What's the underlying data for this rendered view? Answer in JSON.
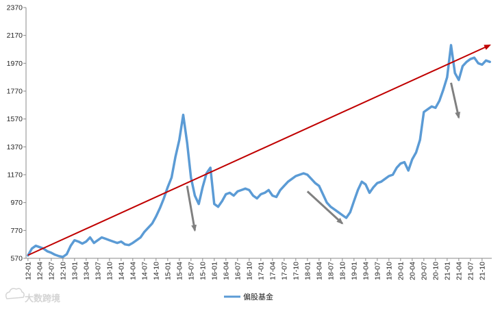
{
  "chart_data": {
    "type": "line",
    "title": "",
    "xlabel": "",
    "ylabel": "",
    "ylim": [
      570,
      2370
    ],
    "y_ticks": [
      570,
      770,
      970,
      1170,
      1370,
      1570,
      1770,
      1970,
      2170,
      2370
    ],
    "x_tick_labels": [
      "12-01",
      "12-04",
      "12-07",
      "12-10",
      "13-01",
      "13-04",
      "13-07",
      "13-10",
      "14-01",
      "14-04",
      "14-07",
      "14-10",
      "15-01",
      "15-04",
      "15-07",
      "15-10",
      "16-01",
      "16-04",
      "16-07",
      "16-10",
      "17-01",
      "17-04",
      "17-07",
      "17-10",
      "18-01",
      "18-04",
      "18-07",
      "18-10",
      "19-01",
      "19-04",
      "19-07",
      "19-10",
      "20-01",
      "20-04",
      "20-07",
      "20-10",
      "21-01",
      "21-04",
      "21-07",
      "21-10"
    ],
    "grid": false,
    "legend_position": "bottom",
    "series": [
      {
        "name": "偏股基金",
        "color": "#5B9BD5",
        "x": [
          "12-01",
          "12-02",
          "12-03",
          "12-04",
          "12-05",
          "12-06",
          "12-07",
          "12-08",
          "12-09",
          "12-10",
          "12-11",
          "12-12",
          "13-01",
          "13-02",
          "13-03",
          "13-04",
          "13-05",
          "13-06",
          "13-07",
          "13-08",
          "13-09",
          "13-10",
          "13-11",
          "13-12",
          "14-01",
          "14-02",
          "14-03",
          "14-04",
          "14-05",
          "14-06",
          "14-07",
          "14-08",
          "14-09",
          "14-10",
          "14-11",
          "14-12",
          "15-01",
          "15-02",
          "15-03",
          "15-04",
          "15-05",
          "15-06",
          "15-07",
          "15-08",
          "15-09",
          "15-10",
          "15-11",
          "15-12",
          "16-01",
          "16-02",
          "16-03",
          "16-04",
          "16-05",
          "16-06",
          "16-07",
          "16-08",
          "16-09",
          "16-10",
          "16-11",
          "16-12",
          "17-01",
          "17-02",
          "17-03",
          "17-04",
          "17-05",
          "17-06",
          "17-07",
          "17-08",
          "17-09",
          "17-10",
          "17-11",
          "17-12",
          "18-01",
          "18-02",
          "18-03",
          "18-04",
          "18-05",
          "18-06",
          "18-07",
          "18-08",
          "18-09",
          "18-10",
          "18-11",
          "18-12",
          "19-01",
          "19-02",
          "19-03",
          "19-04",
          "19-05",
          "19-06",
          "19-07",
          "19-08",
          "19-09",
          "19-10",
          "19-11",
          "19-12",
          "20-01",
          "20-02",
          "20-03",
          "20-04",
          "20-05",
          "20-06",
          "20-07",
          "20-08",
          "20-09",
          "20-10",
          "20-11",
          "20-12",
          "21-01",
          "21-02",
          "21-03",
          "21-04",
          "21-05",
          "21-06",
          "21-07",
          "21-08",
          "21-09",
          "21-10",
          "21-11",
          "21-12"
        ],
        "values": [
          590,
          640,
          660,
          650,
          640,
          620,
          610,
          595,
          585,
          580,
          600,
          660,
          700,
          690,
          675,
          690,
          720,
          680,
          700,
          720,
          710,
          700,
          690,
          680,
          690,
          670,
          665,
          680,
          700,
          720,
          760,
          790,
          820,
          870,
          930,
          1000,
          1080,
          1150,
          1300,
          1420,
          1600,
          1400,
          1150,
          1020,
          960,
          1080,
          1180,
          1220,
          960,
          940,
          980,
          1030,
          1040,
          1020,
          1050,
          1060,
          1070,
          1060,
          1020,
          1000,
          1030,
          1040,
          1060,
          1020,
          1010,
          1060,
          1090,
          1120,
          1140,
          1160,
          1170,
          1180,
          1170,
          1140,
          1110,
          1090,
          1030,
          970,
          940,
          920,
          900,
          880,
          860,
          900,
          980,
          1060,
          1120,
          1100,
          1040,
          1080,
          1110,
          1120,
          1140,
          1160,
          1170,
          1220,
          1250,
          1260,
          1200,
          1280,
          1330,
          1420,
          1620,
          1640,
          1660,
          1650,
          1700,
          1780,
          1870,
          2100,
          1900,
          1850,
          1950,
          1980,
          2000,
          2010,
          1970,
          1960,
          1990,
          1980
        ]
      },
      {
        "name": "",
        "type": "trend-line",
        "color": "#C00000",
        "x": [
          "12-01",
          "21-12"
        ],
        "values": [
          592,
          2100
        ]
      }
    ],
    "annotations": [
      {
        "type": "arrow",
        "color": "#808080",
        "from": {
          "x": "15-06",
          "y": 1090
        },
        "to": {
          "x": "15-08",
          "y": 770
        }
      },
      {
        "type": "arrow",
        "color": "#808080",
        "from": {
          "x": "18-01",
          "y": 1050
        },
        "to": {
          "x": "18-10",
          "y": 820
        }
      },
      {
        "type": "arrow",
        "color": "#808080",
        "from": {
          "x": "21-02",
          "y": 1830
        },
        "to": {
          "x": "21-04",
          "y": 1580
        }
      }
    ]
  },
  "legend": {
    "label": "偏股基金"
  },
  "watermark": {
    "text": "大数跨境",
    "logo_icon": "cloud-logo-icon"
  }
}
